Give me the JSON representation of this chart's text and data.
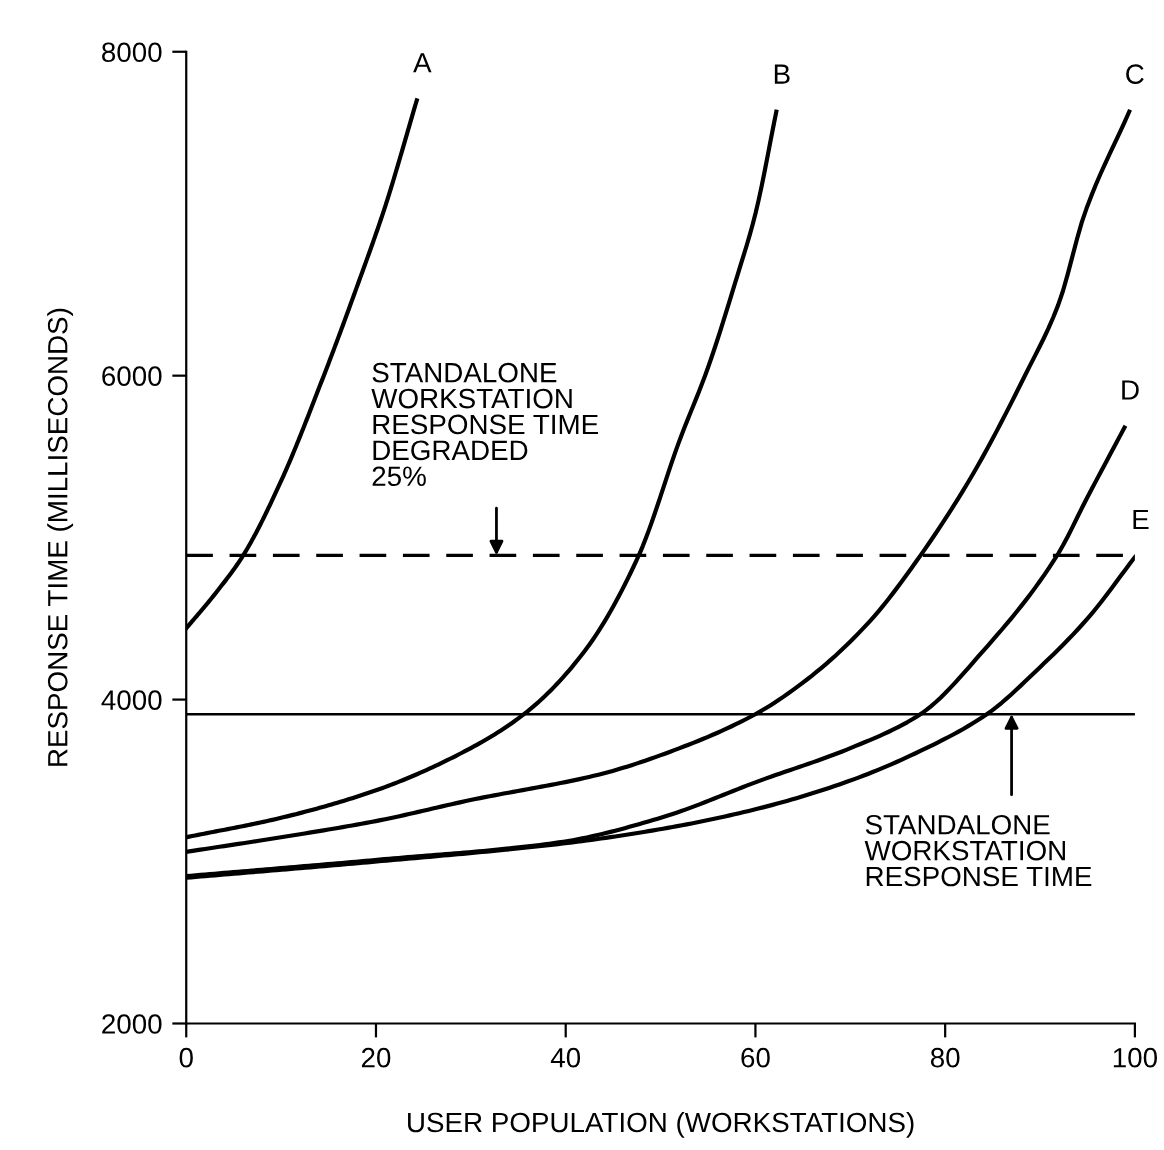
{
  "chart_data": {
    "type": "line",
    "xlabel": "USER POPULATION (WORKSTATIONS)",
    "ylabel": "RESPONSE TIME (MILLISECONDS)",
    "xlim": [
      0,
      100
    ],
    "xticks": [
      0,
      20,
      40,
      60,
      80,
      100
    ],
    "ylim": [
      2000,
      8000
    ],
    "yticks": [
      2000,
      4000,
      6000,
      8000
    ],
    "grid": false,
    "marker": "none",
    "line_style": "solid",
    "series": [
      {
        "name": "A",
        "color": "#000000",
        "x": [
          0,
          3,
          6,
          10,
          14.5,
          18,
          21,
          24.3
        ],
        "values": [
          4440,
          4650,
          4890,
          5350,
          6000,
          6550,
          7050,
          7700
        ]
      },
      {
        "name": "B",
        "color": "#000000",
        "x": [
          0,
          10,
          20,
          28,
          35.6,
          42,
          47.7,
          52,
          55,
          58,
          60,
          62.2
        ],
        "values": [
          3150,
          3270,
          3440,
          3640,
          3910,
          4300,
          4890,
          5600,
          6050,
          6600,
          7000,
          7630
        ]
      },
      {
        "name": "C",
        "color": "#000000",
        "x": [
          0,
          10,
          20,
          30,
          43.7,
          52,
          60,
          66,
          72,
          77.4,
          83,
          88.4,
          92,
          94.7,
          99.4
        ],
        "values": [
          3060,
          3150,
          3250,
          3380,
          3540,
          3700,
          3910,
          4150,
          4480,
          4890,
          5400,
          6000,
          6450,
          7000,
          7630
        ]
      },
      {
        "name": "D",
        "color": "#000000",
        "x": [
          0,
          20,
          39.5,
          50,
          60.5,
          70,
          77.4,
          84,
          91.8,
          95,
          98.9
        ],
        "values": [
          2910,
          3010,
          3120,
          3270,
          3500,
          3700,
          3910,
          4300,
          4890,
          5250,
          5680
        ]
      },
      {
        "name": "E",
        "color": "#000000",
        "x": [
          0,
          20,
          39.5,
          50,
          60.5,
          70,
          78,
          84.4,
          90,
          95,
          100
        ],
        "values": [
          2900,
          3000,
          3110,
          3200,
          3330,
          3500,
          3700,
          3910,
          4200,
          4500,
          4880
        ]
      }
    ],
    "ref_lines": [
      {
        "axis": "y",
        "value": 4890,
        "label": "STANDALONE\nWORKSTATION\nRESPONSE TIME\nDEGRADED\n25%",
        "color": "#000000",
        "line_style": "dashed"
      },
      {
        "axis": "y",
        "value": 3910,
        "label": "STANDALONE\nWORKSTATION\nRESPONSE TIME",
        "color": "#000000",
        "line_style": "solid"
      }
    ]
  }
}
